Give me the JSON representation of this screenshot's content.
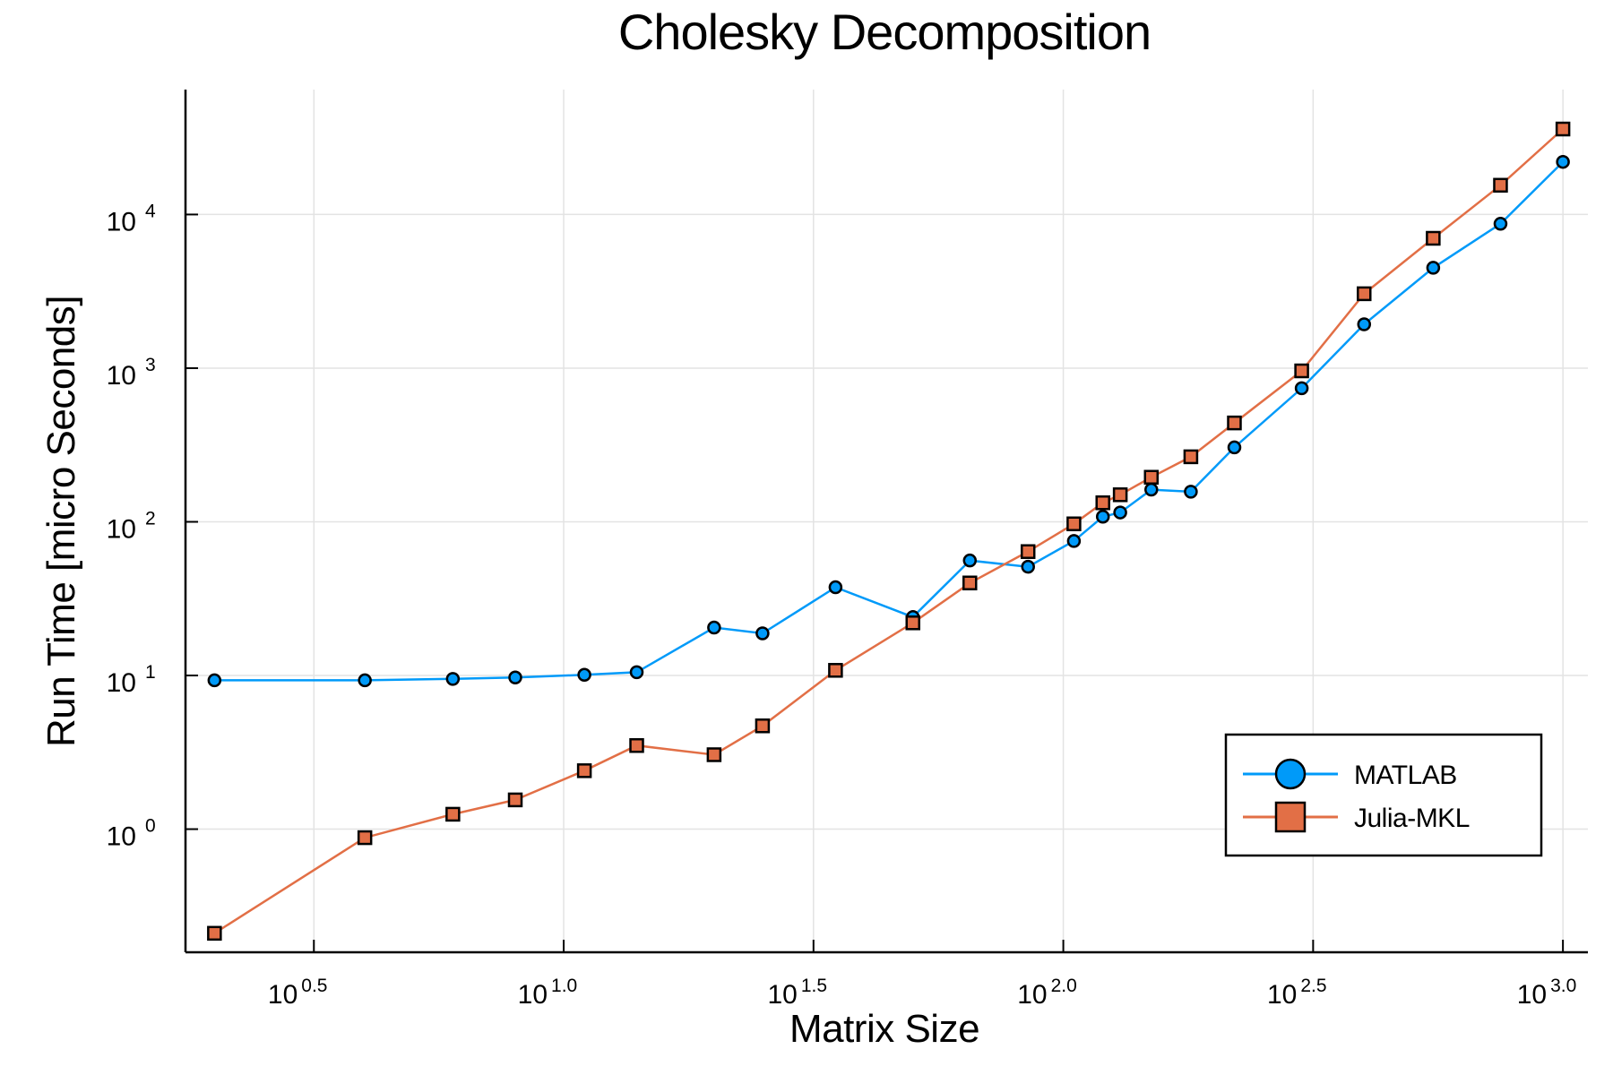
{
  "colors": {
    "matlab": "#009af9",
    "julia": "#e26f46"
  },
  "chart_data": {
    "type": "line",
    "title": "Cholesky Decomposition",
    "xlabel": "Matrix Size",
    "ylabel": "Run Time  [micro Seconds]",
    "x_scale": "log10",
    "y_scale": "log10",
    "xlim": [
      1.75,
      1122
    ],
    "ylim": [
      0.158,
      65000
    ],
    "x_ticks": [
      {
        "value": 3.1623,
        "base": "10",
        "exp": "0.5"
      },
      {
        "value": 10,
        "base": "10",
        "exp": "1.0"
      },
      {
        "value": 31.623,
        "base": "10",
        "exp": "1.5"
      },
      {
        "value": 100,
        "base": "10",
        "exp": "2.0"
      },
      {
        "value": 316.23,
        "base": "10",
        "exp": "2.5"
      },
      {
        "value": 1000,
        "base": "10",
        "exp": "3.0"
      }
    ],
    "y_ticks": [
      {
        "value": 1,
        "base": "10",
        "exp": "0"
      },
      {
        "value": 10,
        "base": "10",
        "exp": "1"
      },
      {
        "value": 100,
        "base": "10",
        "exp": "2"
      },
      {
        "value": 1000,
        "base": "10",
        "exp": "3"
      },
      {
        "value": 10000,
        "base": "10",
        "exp": "4"
      }
    ],
    "grid": true,
    "legend_position": "bottom-right",
    "series": [
      {
        "name": "MATLAB",
        "marker": "circle",
        "color": "#009af9",
        "x": [
          2,
          4,
          6,
          8,
          11,
          14,
          20,
          25,
          35,
          50,
          65,
          85,
          105,
          120,
          130,
          150,
          180,
          220,
          300,
          400,
          550,
          750,
          1000
        ],
        "y": [
          9.3,
          9.3,
          9.5,
          9.7,
          10.1,
          10.5,
          20.5,
          18.8,
          37.5,
          24,
          56,
          51,
          75,
          108,
          115,
          162,
          157,
          305,
          740,
          1930,
          4500,
          8700,
          22000
        ]
      },
      {
        "name": "Julia-MKL",
        "marker": "square",
        "color": "#e26f46",
        "x": [
          2,
          4,
          6,
          8,
          11,
          14,
          20,
          25,
          35,
          50,
          65,
          85,
          105,
          120,
          130,
          150,
          180,
          220,
          300,
          400,
          550,
          750,
          1000
        ],
        "y": [
          0.21,
          0.88,
          1.25,
          1.55,
          2.4,
          3.5,
          3.05,
          4.7,
          10.8,
          22,
          40,
          64,
          97,
          133,
          150,
          195,
          265,
          440,
          960,
          3050,
          7000,
          15500,
          36000
        ]
      }
    ]
  }
}
